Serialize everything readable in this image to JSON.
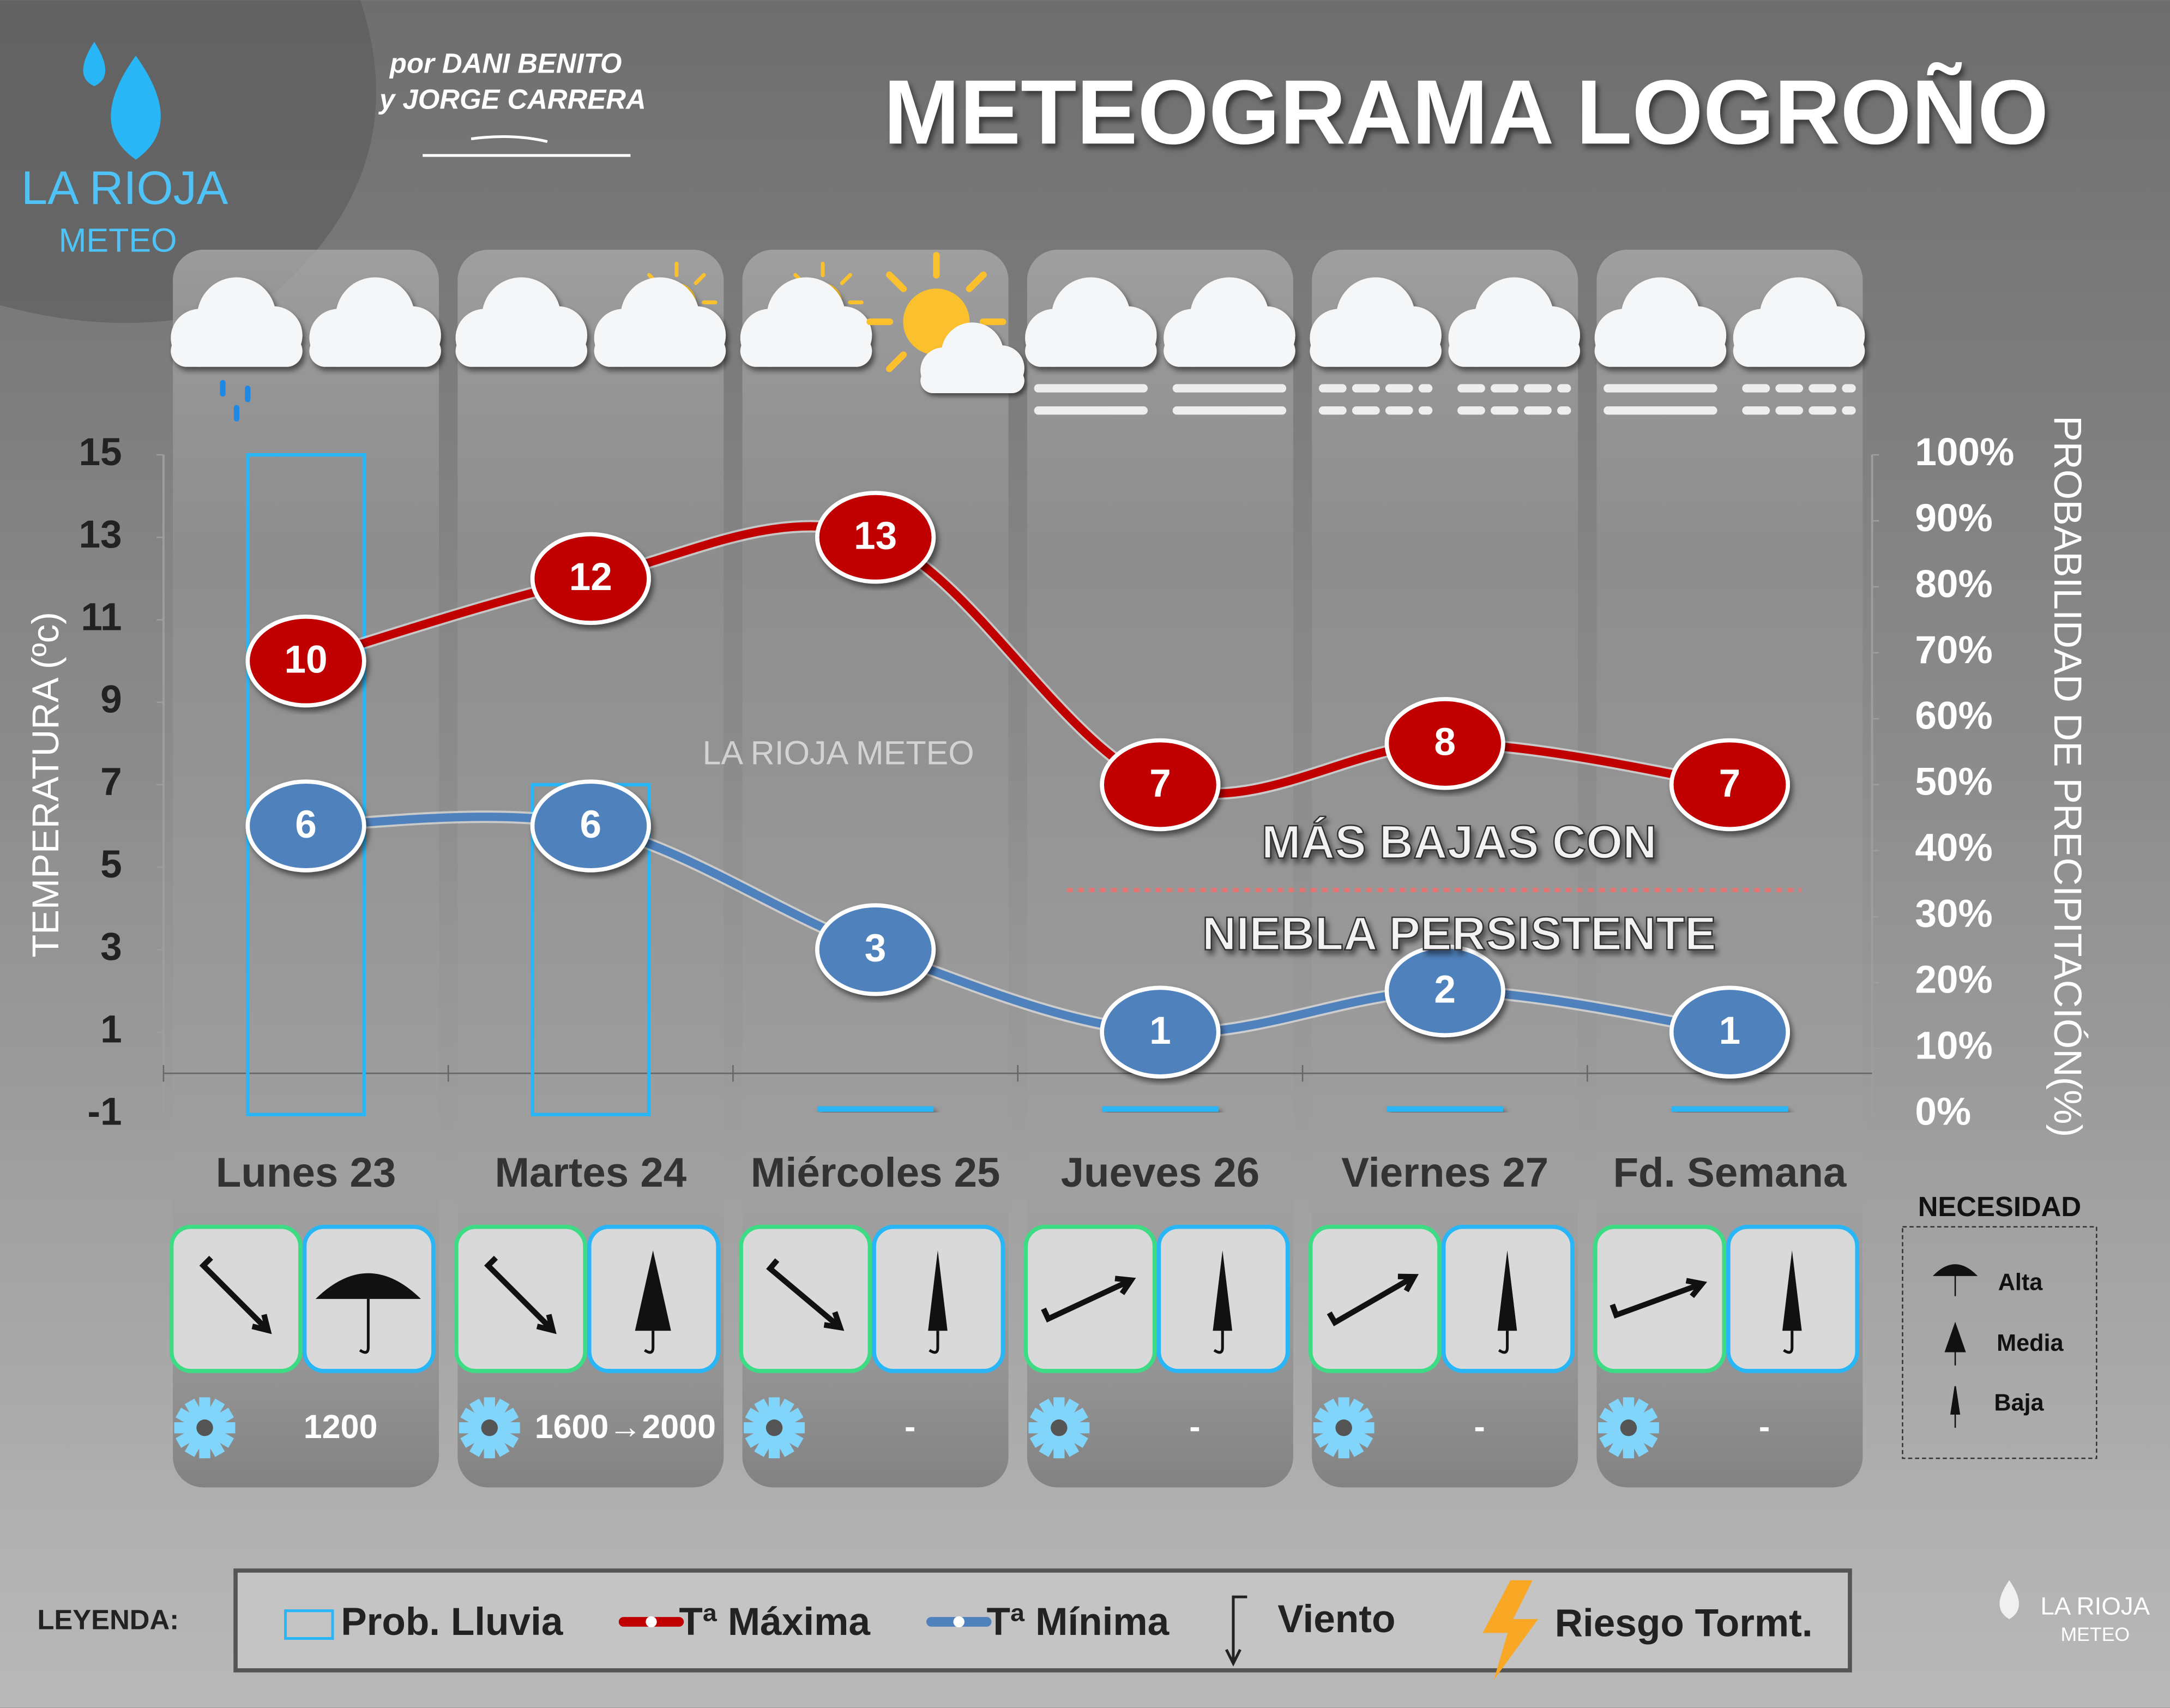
{
  "chart_data": {
    "type": "line",
    "title": "METEOGRAMA LOGROÑO",
    "credits": [
      "por DANI BENITO",
      "y JORGE CARRERA"
    ],
    "logo": [
      "LA RIOJA",
      "METEO"
    ],
    "watermark": "LA RIOJA METEO",
    "y_label": "TEMPERATURA (ºc)",
    "y2_label": "PROBABILIDAD DE PRECIPITACIÓN(%)",
    "categories": [
      "Lunes 23",
      "Martes 24",
      "Miércoles 25",
      "Jueves 26",
      "Viernes 27",
      "Fd. Semana"
    ],
    "series": [
      {
        "name": "Tª Máxima",
        "color": "#c00000",
        "values": [
          10,
          12,
          13,
          7,
          8,
          7
        ]
      },
      {
        "name": "Tª Mínima",
        "color": "#4f81bd",
        "values": [
          6,
          6,
          3,
          1,
          2,
          1
        ]
      },
      {
        "name": "Prob. Lluvia",
        "type": "bar",
        "axis": "y2",
        "color": "#29b6f6",
        "values": [
          100,
          50,
          0,
          0,
          0,
          0
        ]
      }
    ],
    "ylim": [
      -1,
      15
    ],
    "yticks": [
      -1,
      1,
      3,
      5,
      7,
      9,
      11,
      13,
      15
    ],
    "y2lim": [
      0,
      100
    ],
    "y2ticks": [
      {
        "value": 0,
        "label": "0%"
      },
      {
        "value": 10,
        "label": "10%"
      },
      {
        "value": 20,
        "label": "20%"
      },
      {
        "value": 30,
        "label": "30%"
      },
      {
        "value": 40,
        "label": "40%"
      },
      {
        "value": 50,
        "label": "50%"
      },
      {
        "value": 60,
        "label": "60%"
      },
      {
        "value": 70,
        "label": "70%"
      },
      {
        "value": 80,
        "label": "80%"
      },
      {
        "value": 90,
        "label": "90%"
      },
      {
        "value": 100,
        "label": "100%"
      }
    ],
    "annotations": [
      "MÁS BAJAS CON",
      "NIEBLA PERSISTENTE"
    ],
    "snow_levels": [
      "1200",
      "1600→2000",
      "-",
      "-",
      "-",
      "-"
    ],
    "needs": {
      "title": "NECESIDAD",
      "levels": [
        "Alta",
        "Media",
        "Baja"
      ]
    },
    "legend_title": "LEYENDA:",
    "legend_extra": [
      "Viento",
      "Riesgo Tormt."
    ]
  }
}
